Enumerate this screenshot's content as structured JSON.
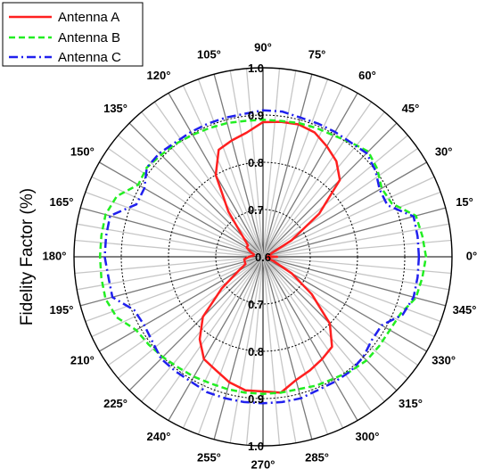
{
  "chart_data": {
    "type": "polar-line",
    "ylabel": "Fidelity Factor (%)",
    "radial_range": [
      0.6,
      1.0
    ],
    "radial_ticks": [
      "0.6",
      "0.7",
      "0.8",
      "0.9",
      "1.0"
    ],
    "radial_tick_values": [
      0.6,
      0.7,
      0.8,
      0.9,
      1.0
    ],
    "angle_ticks": [
      "0°",
      "15°",
      "30°",
      "45°",
      "60°",
      "75°",
      "90°",
      "105°",
      "120°",
      "135°",
      "150°",
      "165°",
      "180°",
      "195°",
      "210°",
      "225°",
      "240°",
      "255°",
      "270°",
      "285°",
      "300°",
      "315°",
      "330°",
      "345°"
    ],
    "angle_tick_values": [
      0,
      15,
      30,
      45,
      60,
      75,
      90,
      105,
      120,
      135,
      150,
      165,
      180,
      195,
      210,
      225,
      240,
      255,
      270,
      285,
      300,
      315,
      330,
      345
    ],
    "angles": [
      0,
      7.5,
      15,
      22.5,
      30,
      37.5,
      45,
      52.5,
      60,
      67.5,
      75,
      82.5,
      90,
      97.5,
      105,
      112.5,
      120,
      127.5,
      135,
      142.5,
      150,
      157.5,
      165,
      172.5,
      180,
      187.5,
      195,
      202.5,
      210,
      217.5,
      225,
      232.5,
      240,
      247.5,
      255,
      262.5,
      270,
      277.5,
      285,
      292.5,
      300,
      307.5,
      315,
      322.5,
      330,
      337.5,
      345,
      352.5
    ],
    "series": [
      {
        "name": "Antenna A",
        "color": "#ff2020",
        "style": "solid",
        "values": [
          0.63,
          0.61,
          0.615,
          0.62,
          0.67,
          0.75,
          0.83,
          0.855,
          0.87,
          0.885,
          0.89,
          0.888,
          0.885,
          0.865,
          0.855,
          0.845,
          0.8,
          0.72,
          0.66,
          0.64,
          0.64,
          0.63,
          0.62,
          0.62,
          0.63,
          0.64,
          0.64,
          0.64,
          0.66,
          0.71,
          0.78,
          0.82,
          0.85,
          0.86,
          0.875,
          0.885,
          0.885,
          0.89,
          0.87,
          0.86,
          0.85,
          0.84,
          0.8,
          0.73,
          0.67,
          0.625,
          0.61,
          0.61
        ]
      },
      {
        "name": "Antenna B",
        "color": "#22ee22",
        "style": "dashed",
        "values": [
          0.945,
          0.94,
          0.935,
          0.895,
          0.89,
          0.905,
          0.915,
          0.905,
          0.897,
          0.895,
          0.893,
          0.89,
          0.89,
          0.89,
          0.893,
          0.895,
          0.898,
          0.902,
          0.905,
          0.91,
          0.905,
          0.935,
          0.945,
          0.945,
          0.945,
          0.945,
          0.945,
          0.935,
          0.91,
          0.905,
          0.9,
          0.895,
          0.893,
          0.89,
          0.89,
          0.89,
          0.89,
          0.89,
          0.89,
          0.895,
          0.898,
          0.905,
          0.91,
          0.91,
          0.91,
          0.915,
          0.935,
          0.94
        ]
      },
      {
        "name": "Antenna C",
        "color": "#2020ee",
        "style": "dashdot",
        "values": [
          0.93,
          0.93,
          0.93,
          0.885,
          0.885,
          0.9,
          0.91,
          0.905,
          0.905,
          0.905,
          0.905,
          0.91,
          0.91,
          0.905,
          0.905,
          0.905,
          0.905,
          0.905,
          0.91,
          0.91,
          0.89,
          0.89,
          0.935,
          0.935,
          0.935,
          0.93,
          0.93,
          0.895,
          0.89,
          0.895,
          0.905,
          0.905,
          0.905,
          0.91,
          0.91,
          0.91,
          0.91,
          0.91,
          0.91,
          0.905,
          0.905,
          0.905,
          0.9,
          0.89,
          0.89,
          0.92,
          0.93,
          0.93
        ]
      }
    ],
    "legend_position": "top-left",
    "grid": true
  }
}
